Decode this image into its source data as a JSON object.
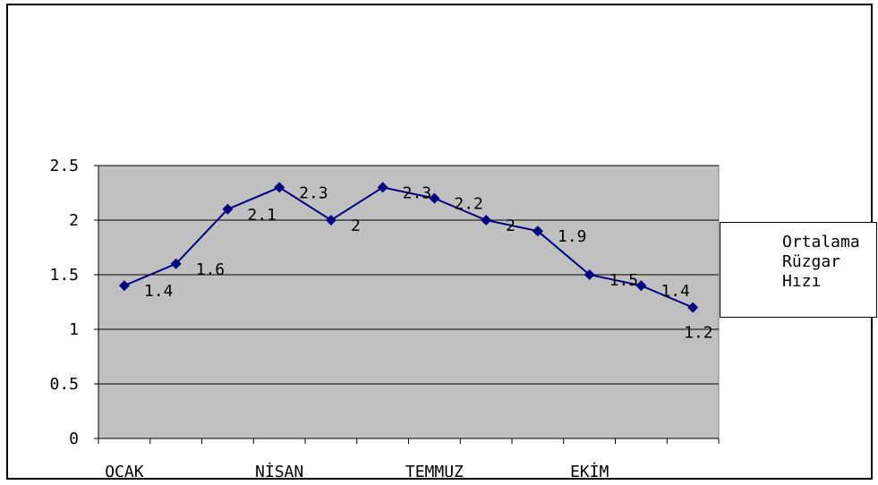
{
  "chart_data": {
    "type": "line",
    "categories": [
      "OCAK",
      "",
      "",
      "NİSAN",
      "",
      "",
      "TEMMUZ",
      "",
      "",
      "EKİM",
      "",
      ""
    ],
    "series": [
      {
        "name": "Ortalama Rüzgar Hızı",
        "values": [
          1.4,
          1.6,
          2.1,
          2.3,
          2,
          2.3,
          2.2,
          2,
          1.9,
          1.5,
          1.4,
          1.2
        ],
        "data_labels": [
          "1.4",
          "1.6",
          "2.1",
          "2.3",
          "2",
          "2.3",
          "2.2",
          "2",
          "1.9",
          "1.5",
          "1.4",
          "1.2"
        ],
        "color": "#000080"
      }
    ],
    "ylim": [
      0,
      2.5
    ],
    "yticks": [
      "0",
      "0.5",
      "1",
      "1.5",
      "2",
      "2.5"
    ],
    "grid": true,
    "plot_background": "#c0c0c0",
    "legend_position": "right"
  }
}
